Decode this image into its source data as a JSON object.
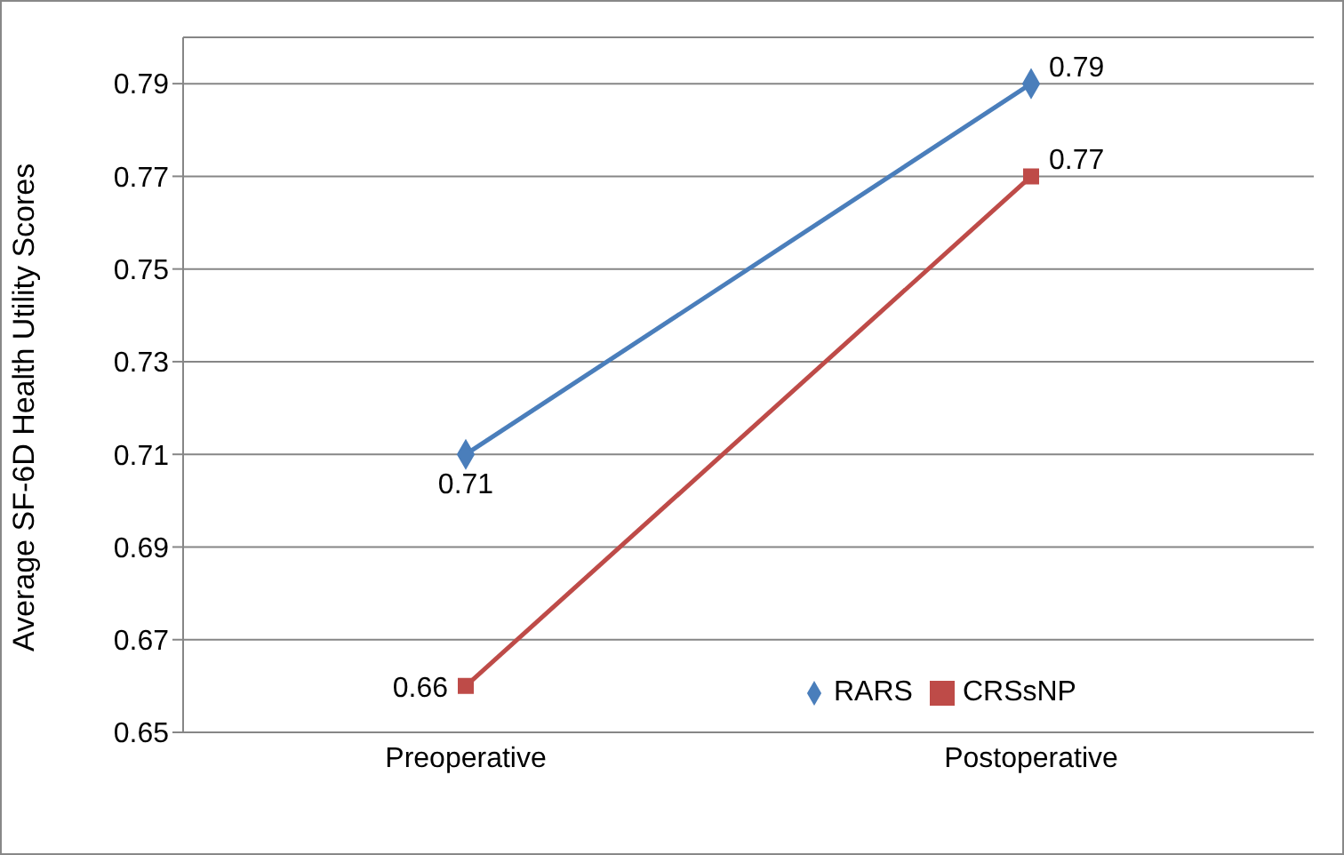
{
  "chart_data": {
    "type": "line",
    "ylabel": "Average SF-6D Health Utility Scores",
    "categories": [
      "Preoperative",
      "Postoperative"
    ],
    "series": [
      {
        "name": "RARS",
        "color": "#4a7ebb",
        "values": [
          0.71,
          0.79
        ],
        "marker": "diamond"
      },
      {
        "name": "CRSsNP",
        "color": "#be4b48",
        "values": [
          0.66,
          0.77
        ],
        "marker": "square"
      }
    ],
    "ylim": [
      0.65,
      0.8
    ],
    "yticks": [
      0.65,
      0.67,
      0.69,
      0.71,
      0.73,
      0.75,
      0.77,
      0.79
    ],
    "grid": "y",
    "legend": "bottom right",
    "data_labels": true,
    "line_style": "solid"
  }
}
